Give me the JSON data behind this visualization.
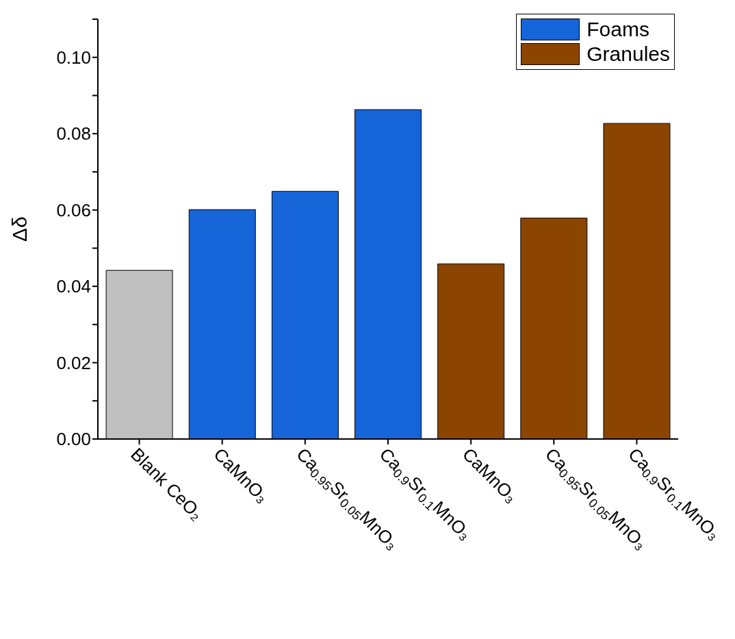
{
  "chart_data": {
    "type": "bar",
    "ylabel": "Δδ",
    "categories": [
      "Blank CeO₂",
      "CaMnO₃",
      "Ca$_{0.95}$Sr$_{0.05}$MnO₃",
      "Ca$_{0.9}$Sr$_{0.1}$MnO₃",
      "CaMnO₃",
      "Ca$_{0.95}$Sr$_{0.05}$MnO₃",
      "Ca$_{0.9}$Sr$_{0.1}$MnO₃"
    ],
    "series": [
      {
        "color": "#c0c0c0",
        "values": [
          0.0442,
          null,
          null,
          null,
          null,
          null,
          null
        ]
      },
      {
        "name": "Foams",
        "color": "#1565d8",
        "values": [
          null,
          0.0601,
          0.0649,
          0.0863,
          null,
          null,
          null
        ]
      },
      {
        "name": "Granules",
        "color": "#8b4500",
        "values": [
          null,
          null,
          null,
          null,
          0.0459,
          0.0579,
          0.0827
        ]
      }
    ],
    "ylim": [
      0,
      0.11
    ],
    "yticks": [
      {
        "value": 0,
        "label": "0.00"
      },
      {
        "value": 0.01,
        "label": null
      },
      {
        "value": 0.02,
        "label": "0.02"
      },
      {
        "value": 0.03,
        "label": null
      },
      {
        "value": 0.04,
        "label": "0.04"
      },
      {
        "value": 0.05,
        "label": null
      },
      {
        "value": 0.06,
        "label": "0.06"
      },
      {
        "value": 0.07,
        "label": null
      },
      {
        "value": 0.08,
        "label": "0.08"
      },
      {
        "value": 0.09,
        "label": null
      },
      {
        "value": 0.1,
        "label": "0.10"
      },
      {
        "value": 0.11,
        "label": null
      }
    ],
    "grid": false,
    "legend": "top right"
  }
}
